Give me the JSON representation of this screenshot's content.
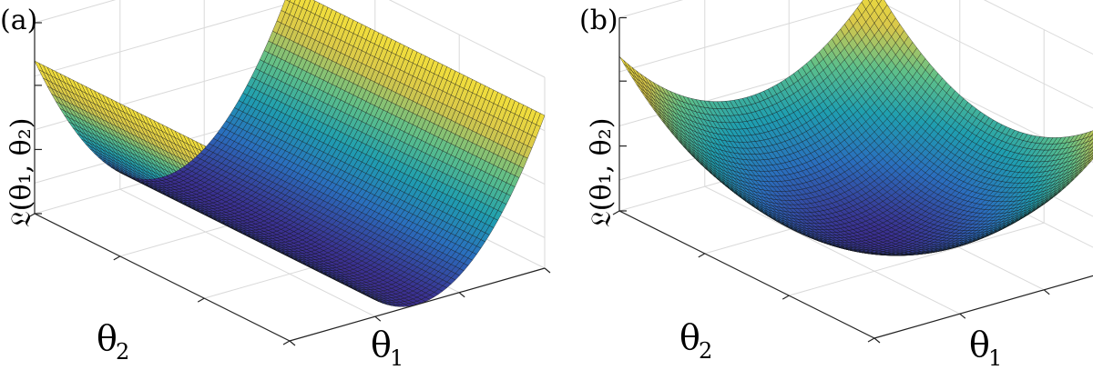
{
  "figure": {
    "panels": [
      {
        "id": "a",
        "label": "(a)",
        "chart_type": "surface",
        "surface": "valley",
        "xlabel_main": "θ",
        "xlabel_sub": "1",
        "ylabel_main": "θ",
        "ylabel_sub": "2",
        "zlabel": "𝔏(θ₁, θ₂)",
        "show_zlabel": false
      },
      {
        "id": "b",
        "label": "(b)",
        "chart_type": "surface",
        "surface": "bowl",
        "xlabel_main": "θ",
        "xlabel_sub": "1",
        "ylabel_main": "θ",
        "ylabel_sub": "2",
        "zlabel": "𝔏(θ₁, θ₂)",
        "show_zlabel": true
      }
    ]
  },
  "chart_data": [
    {
      "type": "surface",
      "title": "",
      "xlabel": "θ1",
      "ylabel": "θ2",
      "zlabel": "",
      "grid": true,
      "colormap": [
        "#3b2f8f",
        "#2a6fbe",
        "#1f9fb0",
        "#5ec08a",
        "#d8c74a",
        "#f4e03a"
      ],
      "equation": "L = θ1^2",
      "x_range": [
        -1,
        1
      ],
      "y_range": [
        -1,
        1
      ]
    },
    {
      "type": "surface",
      "title": "",
      "xlabel": "θ1",
      "ylabel": "θ2",
      "zlabel": "𝔏(θ₁, θ₂)",
      "grid": true,
      "colormap": [
        "#3b2f8f",
        "#2a6fbe",
        "#1f9fb0",
        "#5ec08a",
        "#d8c74a",
        "#f4e03a"
      ],
      "equation": "L = θ1^2 + θ2^2",
      "x_range": [
        -1,
        1
      ],
      "y_range": [
        -1,
        1
      ]
    }
  ]
}
